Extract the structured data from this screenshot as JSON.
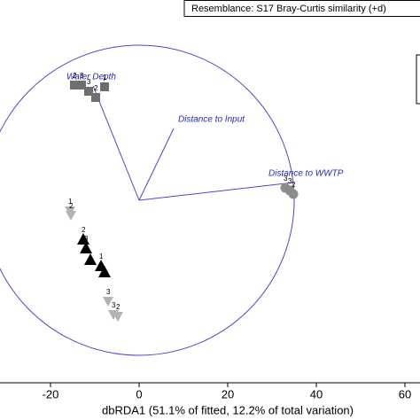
{
  "chart_data": {
    "type": "scatter",
    "title": "Resemblance: S17 Bray-Curtis similarity (+d)",
    "x_label": "dbRDA1 (51.1% of fitted, 12.2% of total variation)",
    "xlim": [
      -31.4,
      63.4
    ],
    "ylim": [
      -41.2,
      45.2
    ],
    "xticks": [
      -20,
      0,
      20,
      40,
      60
    ],
    "circle_radius": 35,
    "vectors": [
      {
        "label": "Water Depth",
        "x": -10.4,
        "y": 25.8
      },
      {
        "label": "Distance to Input",
        "x": 7.8,
        "y": 16.2
      },
      {
        "label": "Distance to WWTP",
        "x": 34.8,
        "y": 4
      }
    ],
    "series": [
      {
        "marker": "square",
        "color": "#6e6e6e",
        "x": [
          -14.6,
          -13,
          -11.4,
          -9.8,
          -7.8
        ],
        "values": [
          26,
          26,
          24.6,
          23.2,
          25.6
        ],
        "labels": [
          "2",
          "3",
          "3",
          "2",
          "1"
        ]
      },
      {
        "marker": "circle",
        "color": "#8c8c8c",
        "x": [
          33,
          34,
          34.8
        ],
        "values": [
          2.8,
          2.2,
          1.4
        ],
        "labels": [
          "3",
          "3",
          "2"
        ]
      },
      {
        "marker": "triangle-down",
        "color": "#b4b4b4",
        "x": [
          -15.6,
          -15.4,
          -7,
          -5.8,
          -4.8
        ],
        "values": [
          -2.4,
          -3.4,
          -22.8,
          -25.8,
          -26.2
        ],
        "labels": [
          "1",
          "2",
          "3",
          "3",
          "2"
        ]
      },
      {
        "marker": "triangle",
        "color": "#000000",
        "x": [
          -12.6,
          -12,
          -11,
          -8.6,
          -7.8
        ],
        "values": [
          -8.8,
          -10.8,
          -13.4,
          -14.8,
          -16.2
        ],
        "labels": [
          "2",
          "3",
          null,
          "1",
          null
        ]
      }
    ]
  }
}
